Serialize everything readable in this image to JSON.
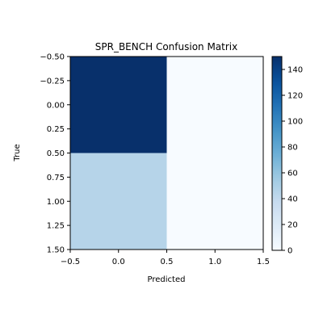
{
  "chart_data": {
    "type": "heatmap",
    "title": "SPR_BENCH Confusion Matrix",
    "xlabel": "Predicted",
    "ylabel": "True",
    "colormap": "Blues",
    "matrix": [
      [
        150,
        0
      ],
      [
        45,
        0
      ]
    ],
    "xlim": [
      -0.5,
      1.5
    ],
    "ylim": [
      1.5,
      -0.5
    ],
    "xticks": [
      "−0.5",
      "0.0",
      "0.5",
      "1.0",
      "1.5"
    ],
    "xtick_values": [
      -0.5,
      0.0,
      0.5,
      1.0,
      1.5
    ],
    "yticks": [
      "−0.50",
      "−0.25",
      "0.00",
      "0.25",
      "0.50",
      "0.75",
      "1.00",
      "1.25",
      "1.50"
    ],
    "ytick_values": [
      -0.5,
      -0.25,
      0.0,
      0.25,
      0.5,
      0.75,
      1.0,
      1.25,
      1.5
    ],
    "colorbar": {
      "vmin": 0,
      "vmax": 150,
      "ticks": [
        "0",
        "20",
        "40",
        "60",
        "80",
        "100",
        "120",
        "140"
      ],
      "tick_values": [
        0,
        20,
        40,
        60,
        80,
        100,
        120,
        140
      ]
    },
    "grid": false,
    "legend": "none"
  }
}
